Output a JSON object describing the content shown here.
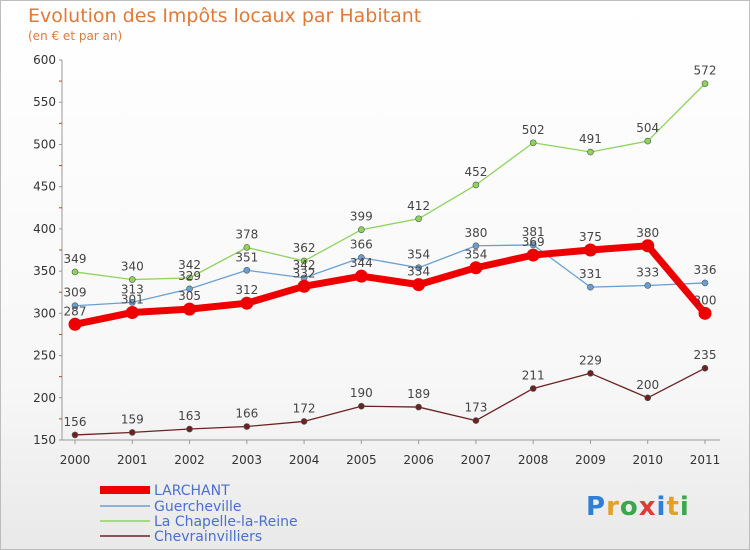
{
  "chart_data": {
    "type": "line",
    "title": "Evolution des Impôts locaux par Habitant",
    "subtitle": "(en € et par an)",
    "x": [
      "2000",
      "2001",
      "2002",
      "2003",
      "2004",
      "2005",
      "2006",
      "2007",
      "2008",
      "2009",
      "2010",
      "2011"
    ],
    "ylim": [
      150,
      600
    ],
    "yticks": [
      150,
      200,
      250,
      300,
      350,
      400,
      450,
      500,
      550,
      600
    ],
    "grid": false,
    "legend_position": "bottom-left",
    "series": [
      {
        "name": "LARCHANT",
        "color": "#ee0000",
        "values": [
          287,
          301,
          305,
          312,
          332,
          344,
          334,
          354,
          369,
          375,
          380,
          300
        ]
      },
      {
        "name": "Guercheville",
        "color": "#6a9fd4",
        "values": [
          309,
          313,
          329,
          351,
          342,
          366,
          354,
          380,
          381,
          331,
          333,
          336
        ]
      },
      {
        "name": "La Chapelle-la-Reine",
        "color": "#8ed45a",
        "values": [
          349,
          340,
          342,
          378,
          362,
          399,
          412,
          452,
          502,
          491,
          504,
          572
        ]
      },
      {
        "name": "Chevrainvilliers",
        "color": "#6b2222",
        "values": [
          156,
          159,
          163,
          166,
          172,
          190,
          189,
          173,
          211,
          229,
          200,
          235
        ]
      }
    ]
  },
  "logo": {
    "letters": [
      "P",
      "r",
      "o",
      "x",
      "i",
      "t",
      "i"
    ],
    "colors": [
      "#2f7fd6",
      "#e2a127",
      "#3aa84a",
      "#e03b3b",
      "#2f7fd6",
      "#e2a127",
      "#3aa84a"
    ]
  }
}
